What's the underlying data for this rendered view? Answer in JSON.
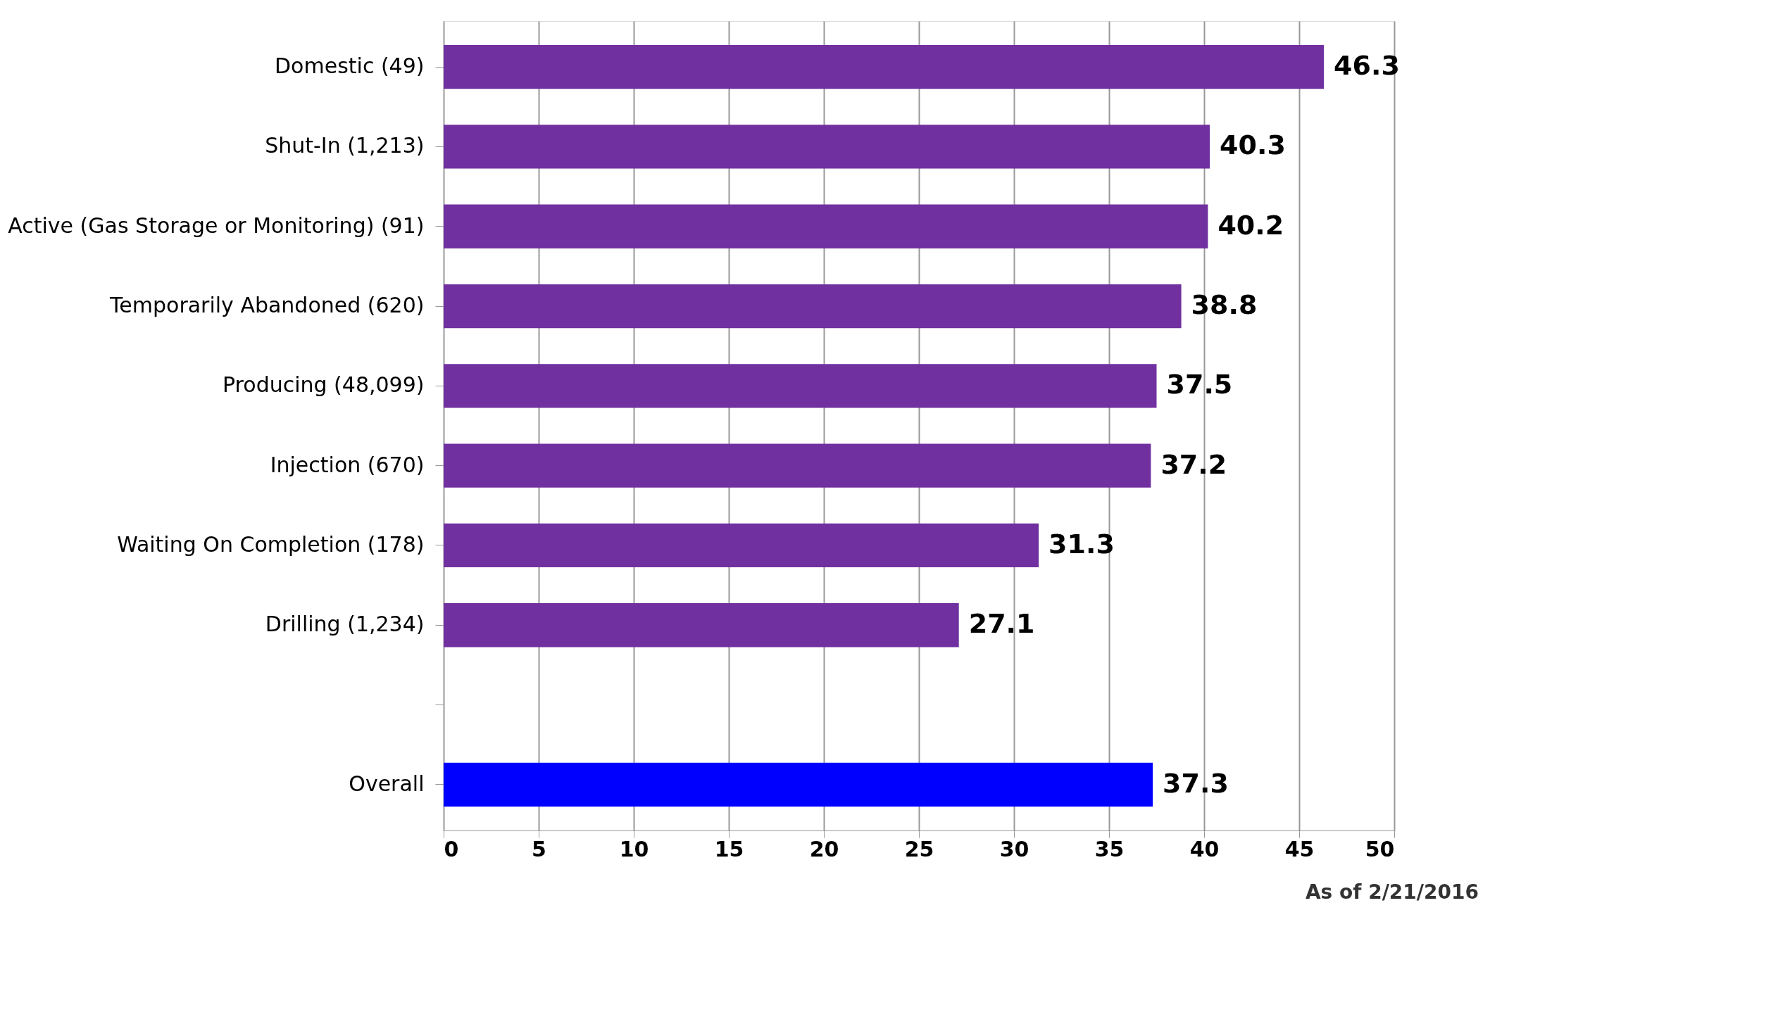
{
  "chart_data": {
    "type": "bar",
    "orientation": "horizontal",
    "categories": [
      "Domestic (49)",
      "Shut-In (1,213)",
      "Active (Gas Storage or Monitoring) (91)",
      "Temporarily Abandoned (620)",
      "Producing (48,099)",
      "Injection (670)",
      "Waiting On Completion (178)",
      "Drilling (1,234)",
      null,
      "Overall"
    ],
    "values": [
      46.3,
      40.3,
      40.2,
      38.8,
      37.5,
      37.2,
      31.3,
      27.1,
      null,
      37.3
    ],
    "colors": [
      "#7030a0",
      "#7030a0",
      "#7030a0",
      "#7030a0",
      "#7030a0",
      "#7030a0",
      "#7030a0",
      "#7030a0",
      null,
      "#0000ff"
    ],
    "xlim": [
      0,
      50
    ],
    "xticks": [
      0,
      5,
      10,
      15,
      20,
      25,
      30,
      35,
      40,
      45,
      50
    ],
    "grid": "x",
    "data_labels": true,
    "annotations": [
      "As of 2/21/2016"
    ]
  }
}
